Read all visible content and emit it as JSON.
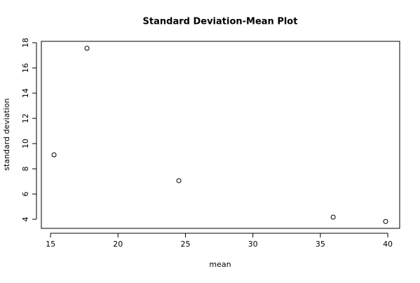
{
  "chart_data": {
    "type": "scatter",
    "title": "Standard Deviation-Mean Plot",
    "x_label": "mean",
    "y_label": "standard deviation",
    "x": [
      15.26,
      17.7,
      24.51,
      35.95,
      39.84
    ],
    "values": [
      9.11,
      17.56,
      7.06,
      4.17,
      3.83
    ],
    "color": "#000000",
    "xlim": [
      14.32,
      40.88
    ],
    "ylim": [
      3.28,
      18.11
    ],
    "xticks": [
      15,
      20,
      25,
      30,
      35,
      40
    ],
    "yticks": [
      4,
      6,
      8,
      10,
      12,
      14,
      16,
      18
    ],
    "grid": false
  }
}
